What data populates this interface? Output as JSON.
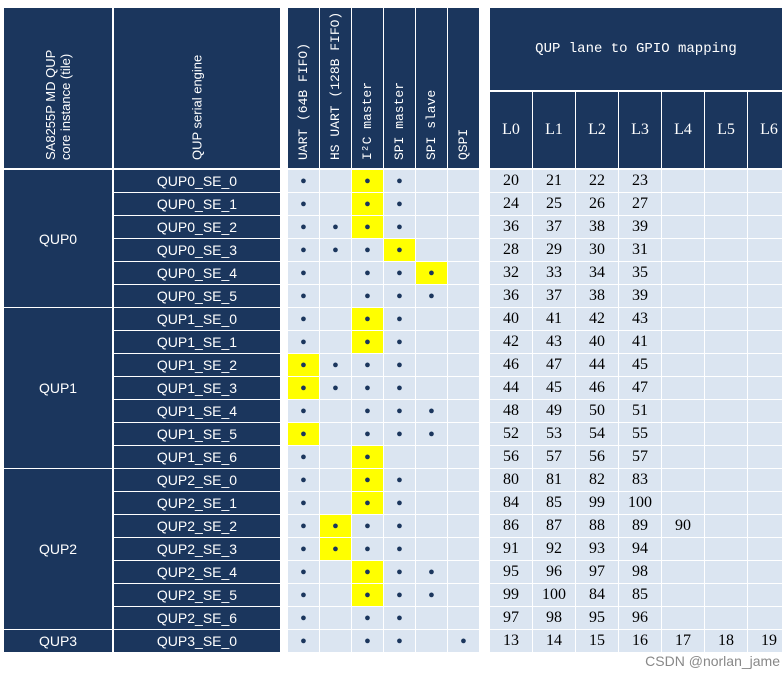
{
  "header": {
    "instance": [
      "SA8255P MD QUP",
      "core instance (tile)"
    ],
    "engine": "QUP serial engine",
    "protocols": [
      "UART (64B FIFO)",
      "HS UART (128B FIFO)",
      "I²C master",
      "SPI master",
      "SPI slave",
      "QSPI"
    ],
    "mapping": "QUP lane to GPIO mapping",
    "lanes": [
      "L0",
      "L1",
      "L2",
      "L3",
      "L4",
      "L5",
      "L6"
    ]
  },
  "groups": [
    {
      "name": "QUP0",
      "rows": 6
    },
    {
      "name": "QUP1",
      "rows": 7
    },
    {
      "name": "QUP2",
      "rows": 7
    },
    {
      "name": "QUP3",
      "rows": 1
    }
  ],
  "rows": [
    {
      "engine": "QUP0_SE_0",
      "protocols": [
        "●",
        null,
        "●",
        "●",
        null,
        null
      ],
      "highlight": 2,
      "lanes": [
        20,
        21,
        22,
        23
      ]
    },
    {
      "engine": "QUP0_SE_1",
      "protocols": [
        "●",
        null,
        "●",
        "●",
        null,
        null
      ],
      "highlight": 2,
      "lanes": [
        24,
        25,
        26,
        27
      ]
    },
    {
      "engine": "QUP0_SE_2",
      "protocols": [
        "●",
        "●",
        "●",
        "●",
        null,
        null
      ],
      "highlight": 2,
      "lanes": [
        36,
        37,
        38,
        39
      ]
    },
    {
      "engine": "QUP0_SE_3",
      "protocols": [
        "●",
        "●",
        "●",
        "●",
        null,
        null
      ],
      "highlight": 3,
      "lanes": [
        28,
        29,
        30,
        31
      ]
    },
    {
      "engine": "QUP0_SE_4",
      "protocols": [
        "●",
        null,
        "●",
        "●",
        "●",
        null
      ],
      "highlight": 4,
      "lanes": [
        32,
        33,
        34,
        35
      ]
    },
    {
      "engine": "QUP0_SE_5",
      "protocols": [
        "●",
        null,
        "●",
        "●",
        "●",
        null
      ],
      "lanes": [
        36,
        37,
        38,
        39
      ]
    },
    {
      "engine": "QUP1_SE_0",
      "protocols": [
        "●",
        null,
        "●",
        "●",
        null,
        null
      ],
      "highlight": 2,
      "lanes": [
        40,
        41,
        42,
        43
      ]
    },
    {
      "engine": "QUP1_SE_1",
      "protocols": [
        "●",
        null,
        "●",
        "●",
        null,
        null
      ],
      "highlight": 2,
      "lanes": [
        42,
        43,
        40,
        41
      ]
    },
    {
      "engine": "QUP1_SE_2",
      "protocols": [
        "●",
        "●",
        "●",
        "●",
        null,
        null
      ],
      "highlight": 0,
      "lanes": [
        46,
        47,
        44,
        45
      ]
    },
    {
      "engine": "QUP1_SE_3",
      "protocols": [
        "●",
        "●",
        "●",
        "●",
        null,
        null
      ],
      "highlight": 0,
      "lanes": [
        44,
        45,
        46,
        47
      ]
    },
    {
      "engine": "QUP1_SE_4",
      "protocols": [
        "●",
        null,
        "●",
        "●",
        "●",
        null
      ],
      "lanes": [
        48,
        49,
        50,
        51
      ]
    },
    {
      "engine": "QUP1_SE_5",
      "protocols": [
        "●",
        null,
        "●",
        "●",
        "●",
        null
      ],
      "highlight": 0,
      "lanes": [
        52,
        53,
        54,
        55
      ]
    },
    {
      "engine": "QUP1_SE_6",
      "protocols": [
        "●",
        null,
        "●",
        null,
        null,
        null
      ],
      "highlight": 2,
      "lanes": [
        56,
        57,
        56,
        57
      ]
    },
    {
      "engine": "QUP2_SE_0",
      "protocols": [
        "●",
        null,
        "●",
        "●",
        null,
        null
      ],
      "highlight": 2,
      "lanes": [
        80,
        81,
        82,
        83
      ]
    },
    {
      "engine": "QUP2_SE_1",
      "protocols": [
        "●",
        null,
        "●",
        "●",
        null,
        null
      ],
      "highlight": 2,
      "lanes": [
        84,
        85,
        99,
        100
      ]
    },
    {
      "engine": "QUP2_SE_2",
      "protocols": [
        "●",
        "●",
        "●",
        "●",
        null,
        null
      ],
      "highlight": 1,
      "lanes": [
        86,
        87,
        88,
        89,
        90
      ]
    },
    {
      "engine": "QUP2_SE_3",
      "protocols": [
        "●",
        "●",
        "●",
        "●",
        null,
        null
      ],
      "highlight": 1,
      "lanes": [
        91,
        92,
        93,
        94
      ]
    },
    {
      "engine": "QUP2_SE_4",
      "protocols": [
        "●",
        null,
        "●",
        "●",
        "●",
        null
      ],
      "highlight": 2,
      "lanes": [
        95,
        96,
        97,
        98
      ]
    },
    {
      "engine": "QUP2_SE_5",
      "protocols": [
        "●",
        null,
        "●",
        "●",
        "●",
        null
      ],
      "highlight": 2,
      "lanes": [
        99,
        100,
        84,
        85
      ]
    },
    {
      "engine": "QUP2_SE_6",
      "protocols": [
        "●",
        null,
        "●",
        "●",
        null,
        null
      ],
      "lanes": [
        97,
        98,
        95,
        96
      ]
    },
    {
      "engine": "QUP3_SE_0",
      "protocols": [
        "●",
        null,
        "●",
        "●",
        null,
        "●"
      ],
      "lanes": [
        13,
        14,
        15,
        16,
        17,
        18,
        19
      ]
    }
  ],
  "watermark": "CSDN @norlan_jame"
}
